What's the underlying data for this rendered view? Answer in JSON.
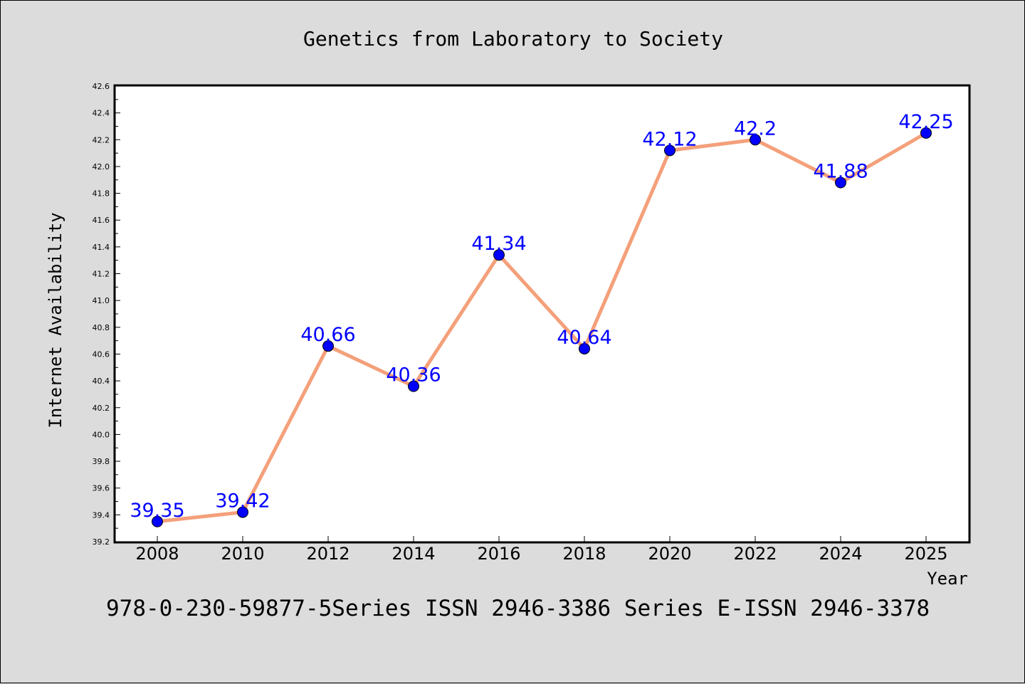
{
  "chart_data": {
    "type": "line",
    "title": "Genetics from Laboratory to Society",
    "xlabel": "Year",
    "ylabel": "Internet Availability",
    "categories": [
      "2008",
      "2010",
      "2012",
      "2014",
      "2016",
      "2018",
      "2020",
      "2022",
      "2024",
      "2025"
    ],
    "series": [
      {
        "values": [
          39.35,
          39.42,
          40.66,
          40.36,
          41.34,
          40.64,
          42.12,
          42.2,
          41.88,
          42.25
        ],
        "line_color": "#f4a07a",
        "marker_color": "#0000ff",
        "label_color": "#0000ff"
      }
    ],
    "data_labels": [
      "39.35",
      "39.42",
      "40.66",
      "40.36",
      "41.34",
      "40.64",
      "42.12",
      "42.2",
      "41.88",
      "42.25"
    ],
    "ylim": [
      39.2,
      42.6
    ],
    "yticks": [
      "39.2",
      "39.4",
      "39.6",
      "39.8",
      "40.0",
      "40.2",
      "40.4",
      "40.6",
      "40.8",
      "41.0",
      "41.2",
      "41.4",
      "41.6",
      "41.8",
      "42.0",
      "42.2",
      "42.4",
      "42.6"
    ],
    "grid": false,
    "legend": "none"
  },
  "footer": {
    "text": "978-0-230-59877-5Series ISSN 2946-3386 Series E-ISSN 2946-3378"
  },
  "colors": {
    "background": "#dcdcdc",
    "plot_background": "#ffffff"
  }
}
